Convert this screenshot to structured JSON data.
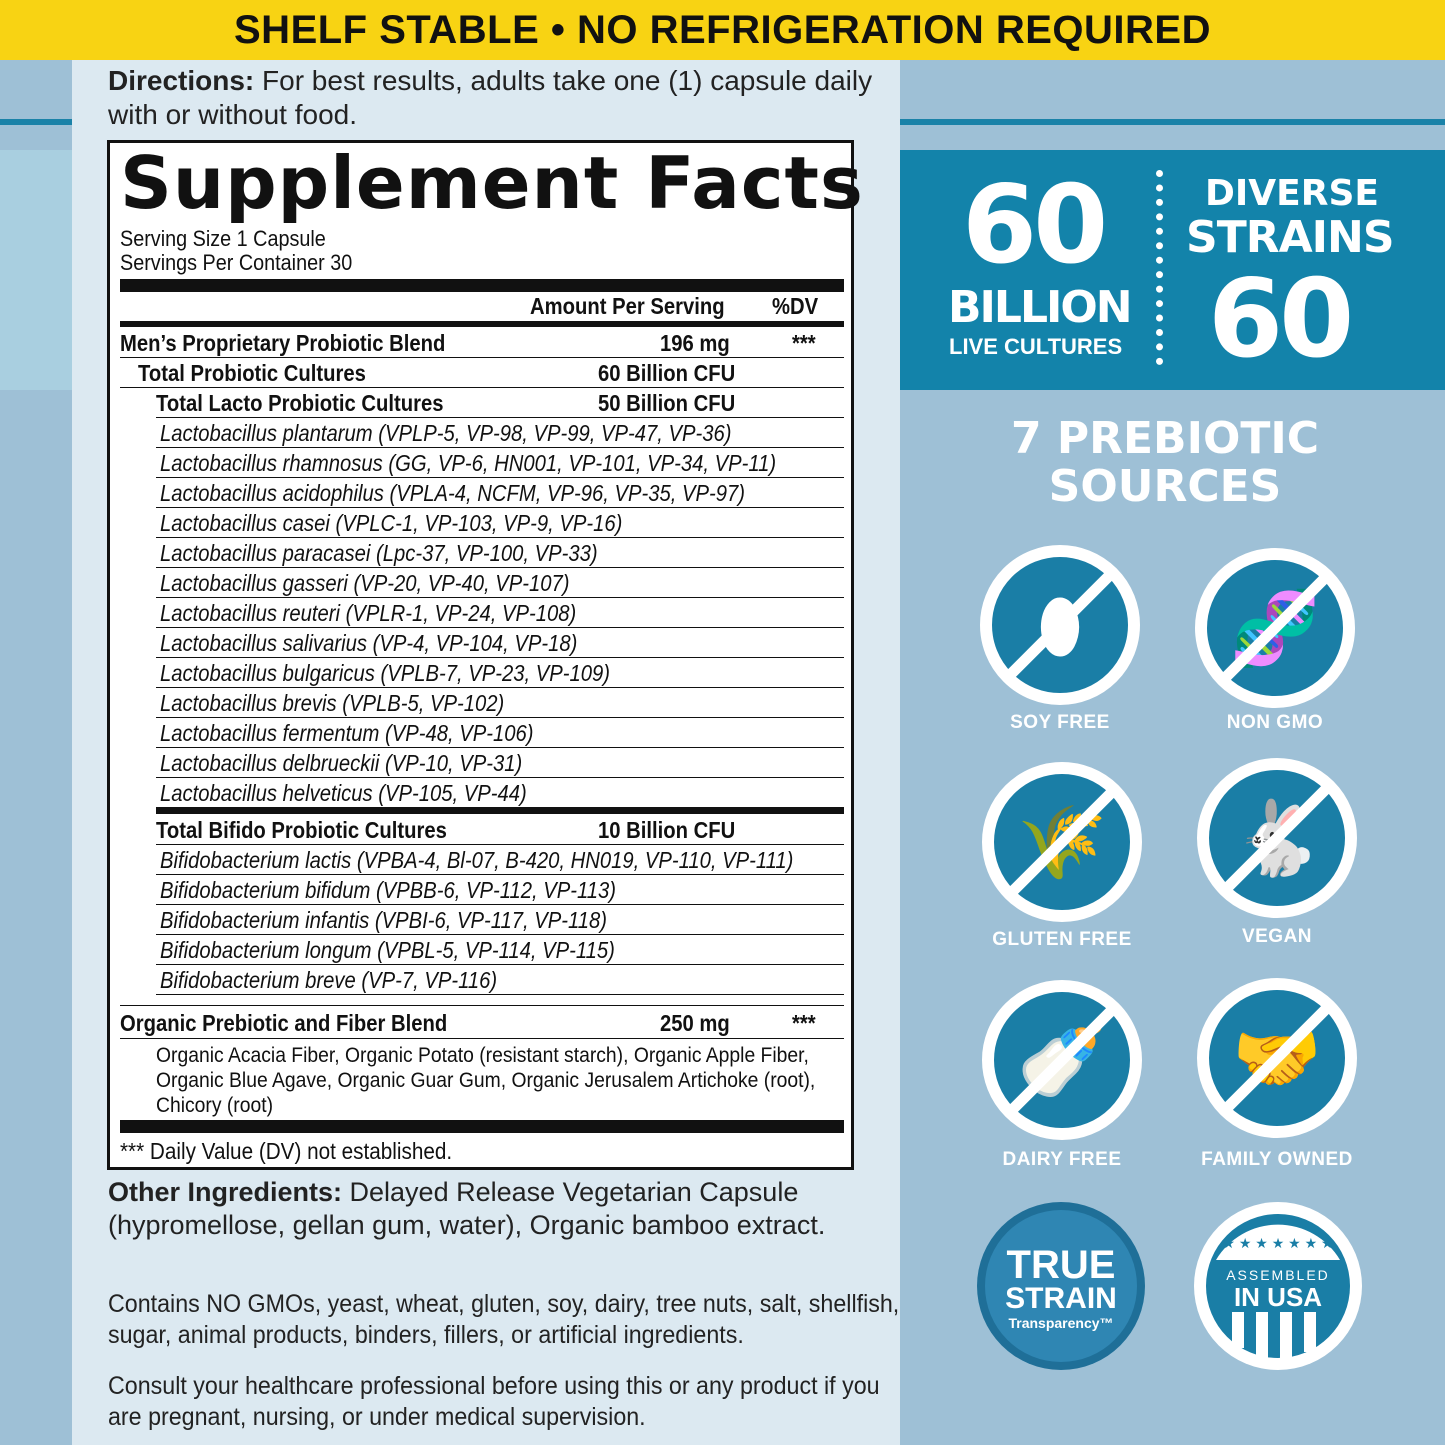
{
  "banner": "SHELF STABLE • NO REFRIGERATION REQUIRED",
  "directions": {
    "label": "Directions:",
    "text": " For best results, adults take one (1) capsule daily with or without food."
  },
  "facts": {
    "title": "Supplement Facts",
    "serving_size": "Serving Size 1 Capsule",
    "servings_per_container": "Servings Per Container 30",
    "col_amount": "Amount Per Serving",
    "col_dv": "%DV",
    "blend": {
      "name": "Men’s Proprietary Probiotic Blend",
      "amount": "196 mg",
      "dv": "***"
    },
    "total": {
      "name": "Total Probiotic Cultures",
      "amount": "60 Billion CFU"
    },
    "lacto": {
      "name": "Total Lacto Probiotic Cultures",
      "amount": "50 Billion CFU"
    },
    "lacto_strains": [
      "Lactobacillus plantarum (VPLP-5, VP-98, VP-99, VP-47, VP-36)",
      "Lactobacillus rhamnosus (GG, VP-6, HN001, VP-101, VP-34, VP-11)",
      "Lactobacillus acidophilus (VPLA-4, NCFM, VP-96, VP-35, VP-97)",
      "Lactobacillus casei (VPLC-1, VP-103, VP-9, VP-16)",
      "Lactobacillus paracasei (Lpc-37, VP-100, VP-33)",
      "Lactobacillus gasseri (VP-20, VP-40, VP-107)",
      "Lactobacillus reuteri (VPLR-1, VP-24, VP-108)",
      "Lactobacillus salivarius (VP-4, VP-104, VP-18)",
      "Lactobacillus bulgaricus (VPLB-7, VP-23, VP-109)",
      "Lactobacillus brevis (VPLB-5, VP-102)",
      "Lactobacillus fermentum (VP-48, VP-106)",
      "Lactobacillus delbrueckii (VP-10, VP-31)",
      "Lactobacillus helveticus (VP-105, VP-44)"
    ],
    "bifido": {
      "name": "Total Bifido Probiotic Cultures",
      "amount": "10 Billion CFU"
    },
    "bifido_strains": [
      "Bifidobacterium lactis (VPBA-4, Bl-07, B-420, HN019, VP-110, VP-111)",
      "Bifidobacterium bifidum (VPBB-6, VP-112, VP-113)",
      "Bifidobacterium infantis (VPBI-6, VP-117, VP-118)",
      "Bifidobacterium longum (VPBL-5, VP-114, VP-115)",
      "Bifidobacterium breve (VP-7, VP-116)"
    ],
    "prebiotic": {
      "name": "Organic Prebiotic and Fiber Blend",
      "amount": "250 mg",
      "dv": "***"
    },
    "prebiotic_ingredients": "Organic Acacia Fiber, Organic Potato (resistant starch), Organic Apple Fiber, Organic Blue Agave, Organic Guar Gum, Organic Jerusalem Artichoke (root), Chicory (root)",
    "footnote": "*** Daily Value (DV) not established."
  },
  "other_ingredients": {
    "label": "Other Ingredients:",
    "text": " Delayed Release Vegetarian Capsule (hypromellose, gellan gum, water), Organic bamboo extract."
  },
  "contains": "Contains NO GMOs, yeast, wheat, gluten, soy, dairy, tree nuts, salt, shellfish, sugar, animal products, binders, fillers, or artificial ingredients.",
  "consult": "Consult your healthcare professional before using this or any product if you are pregnant, nursing, or under medical supervision.",
  "stats": {
    "billion_number": "60",
    "billion_label": "BILLION",
    "billion_sub": "LIVE CULTURES",
    "strains_line1": "DIVERSE",
    "strains_line2": "STRAINS",
    "strains_number": "60"
  },
  "prebiotic_sources": {
    "line1": "7 PREBIOTIC",
    "line2": "SOURCES"
  },
  "badges": [
    {
      "label": "SOY FREE",
      "icon": "soy-free-icon"
    },
    {
      "label": "NON GMO",
      "icon": "non-gmo-icon"
    },
    {
      "label": "GLUTEN FREE",
      "icon": "gluten-free-icon"
    },
    {
      "label": "VEGAN",
      "icon": "vegan-icon"
    },
    {
      "label": "DAIRY FREE",
      "icon": "dairy-free-icon"
    },
    {
      "label": "FAMILY OWNED",
      "icon": "family-owned-icon"
    }
  ],
  "seals": {
    "true_strain": {
      "line1": "TRUE",
      "line2": "STRAIN",
      "line3": "Transparency™"
    },
    "usa": {
      "line1": "ASSEMBLED",
      "line2": "IN USA"
    }
  },
  "colors": {
    "yellow": "#f8d313",
    "teal": "#1383aa",
    "light_blue": "#9ec0d6",
    "panel": "#dce9f1"
  }
}
